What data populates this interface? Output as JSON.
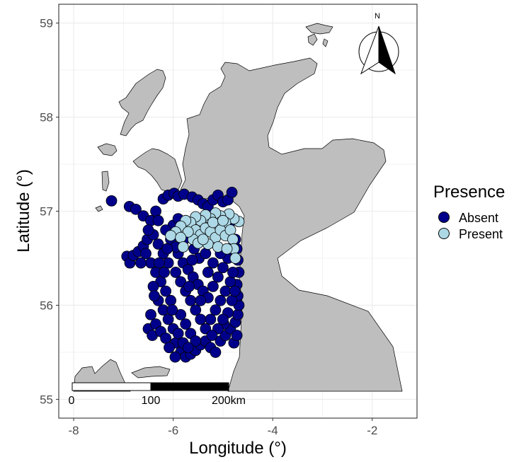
{
  "chart_data": {
    "type": "scatter",
    "xlabel": "Longitude (°)",
    "ylabel": "Latitude (°)",
    "xlim": [
      -8.3,
      -1.1
    ],
    "ylim": [
      54.8,
      59.2
    ],
    "x_ticks": [
      {
        "value": -8,
        "label": "-8"
      },
      {
        "value": -6,
        "label": "-6"
      },
      {
        "value": -4,
        "label": "-4"
      },
      {
        "value": -2,
        "label": "-2"
      }
    ],
    "y_ticks": [
      {
        "value": 55,
        "label": "55"
      },
      {
        "value": 56,
        "label": "56"
      },
      {
        "value": 57,
        "label": "57"
      },
      {
        "value": 58,
        "label": "58"
      },
      {
        "value": 59,
        "label": "59"
      }
    ],
    "grid": true,
    "legend": {
      "title": "Presence",
      "position": "right",
      "entries": [
        {
          "label": "Absent",
          "color": "#00008b"
        },
        {
          "label": "Present",
          "color": "#add8e6"
        }
      ]
    },
    "land_color": "#bebebe",
    "scale_bar": {
      "labels": [
        "0",
        "100",
        "200km"
      ]
    },
    "north_arrow": {
      "label": "N"
    },
    "series": [
      {
        "name": "Absent",
        "color": "#00008b",
        "points": [
          [
            -7.24,
            57.11
          ],
          [
            -6.93,
            56.52
          ],
          [
            -6.87,
            56.45
          ],
          [
            -6.8,
            56.53
          ],
          [
            -6.7,
            56.57
          ],
          [
            -6.6,
            56.63
          ],
          [
            -6.52,
            56.7
          ],
          [
            -6.88,
            57.05
          ],
          [
            -6.75,
            57.02
          ],
          [
            -6.6,
            56.95
          ],
          [
            -6.45,
            56.9
          ],
          [
            -6.35,
            57.0
          ],
          [
            -6.2,
            57.13
          ],
          [
            -6.1,
            57.17
          ],
          [
            -5.98,
            57.19
          ],
          [
            -5.9,
            57.16
          ],
          [
            -5.78,
            57.18
          ],
          [
            -5.62,
            57.15
          ],
          [
            -5.5,
            57.12
          ],
          [
            -5.4,
            57.08
          ],
          [
            -5.3,
            57.05
          ],
          [
            -5.2,
            57.12
          ],
          [
            -5.1,
            57.17
          ],
          [
            -5.0,
            57.1
          ],
          [
            -4.9,
            57.12
          ],
          [
            -4.82,
            57.2
          ],
          [
            -6.4,
            56.75
          ],
          [
            -6.3,
            56.65
          ],
          [
            -6.2,
            56.55
          ],
          [
            -6.1,
            56.45
          ],
          [
            -6.35,
            56.35
          ],
          [
            -6.25,
            56.25
          ],
          [
            -6.15,
            56.15
          ],
          [
            -6.05,
            56.05
          ],
          [
            -6.45,
            56.45
          ],
          [
            -6.4,
            56.2
          ],
          [
            -6.3,
            56.05
          ],
          [
            -6.2,
            55.95
          ],
          [
            -6.1,
            55.85
          ],
          [
            -6.0,
            55.75
          ],
          [
            -6.45,
            55.9
          ],
          [
            -6.5,
            55.75
          ],
          [
            -6.42,
            55.68
          ],
          [
            -6.35,
            55.8
          ],
          [
            -6.25,
            55.72
          ],
          [
            -6.15,
            55.65
          ],
          [
            -5.95,
            55.6
          ],
          [
            -5.85,
            55.5
          ],
          [
            -5.75,
            55.45
          ],
          [
            -5.65,
            55.48
          ],
          [
            -5.55,
            55.52
          ],
          [
            -5.45,
            55.58
          ],
          [
            -5.35,
            55.62
          ],
          [
            -5.25,
            55.55
          ],
          [
            -5.15,
            55.5
          ],
          [
            -5.05,
            55.62
          ],
          [
            -4.95,
            55.68
          ],
          [
            -4.85,
            55.75
          ],
          [
            -4.75,
            55.82
          ],
          [
            -4.7,
            55.9
          ],
          [
            -4.68,
            56.0
          ],
          [
            -4.7,
            56.1
          ],
          [
            -4.72,
            56.22
          ],
          [
            -4.68,
            56.35
          ],
          [
            -4.7,
            56.48
          ],
          [
            -4.72,
            56.6
          ],
          [
            -4.75,
            56.7
          ],
          [
            -5.95,
            56.35
          ],
          [
            -5.85,
            56.25
          ],
          [
            -5.75,
            56.15
          ],
          [
            -5.65,
            56.05
          ],
          [
            -5.55,
            55.95
          ],
          [
            -5.45,
            55.85
          ],
          [
            -5.35,
            55.75
          ],
          [
            -5.25,
            55.85
          ],
          [
            -5.15,
            55.95
          ],
          [
            -5.05,
            56.05
          ],
          [
            -4.95,
            56.15
          ],
          [
            -4.85,
            56.25
          ],
          [
            -4.8,
            56.35
          ],
          [
            -5.9,
            56.55
          ],
          [
            -5.8,
            56.45
          ],
          [
            -5.7,
            56.38
          ],
          [
            -5.6,
            56.3
          ],
          [
            -5.5,
            56.22
          ],
          [
            -5.4,
            56.15
          ],
          [
            -5.3,
            56.08
          ],
          [
            -5.2,
            56.2
          ],
          [
            -5.1,
            56.3
          ],
          [
            -5.0,
            56.4
          ],
          [
            -4.9,
            56.5
          ],
          [
            -6.0,
            56.85
          ],
          [
            -5.9,
            56.92
          ],
          [
            -6.05,
            56.7
          ],
          [
            -5.95,
            56.62
          ],
          [
            -6.15,
            56.8
          ],
          [
            -5.85,
            55.9
          ],
          [
            -5.75,
            55.8
          ],
          [
            -5.65,
            55.7
          ],
          [
            -5.55,
            55.62
          ],
          [
            -4.98,
            55.8
          ],
          [
            -4.9,
            55.92
          ],
          [
            -4.82,
            56.05
          ],
          [
            -5.8,
            55.6
          ],
          [
            -5.7,
            55.55
          ],
          [
            -6.3,
            56.9
          ],
          [
            -6.5,
            56.8
          ],
          [
            -6.55,
            56.55
          ],
          [
            -6.65,
            56.45
          ],
          [
            -5.3,
            56.35
          ],
          [
            -5.2,
            56.45
          ],
          [
            -5.48,
            56.5
          ],
          [
            -5.58,
            56.6
          ],
          [
            -4.78,
            55.6
          ],
          [
            -4.72,
            55.68
          ],
          [
            -5.9,
            55.7
          ],
          [
            -6.02,
            55.95
          ],
          [
            -5.1,
            55.75
          ],
          [
            -5.0,
            55.85
          ],
          [
            -4.76,
            56.15
          ],
          [
            -6.12,
            56.6
          ],
          [
            -5.62,
            56.48
          ],
          [
            -5.35,
            56.55
          ],
          [
            -4.85,
            56.6
          ],
          [
            -6.08,
            55.55
          ],
          [
            -5.22,
            55.68
          ],
          [
            -5.45,
            56.05
          ],
          [
            -6.28,
            56.45
          ],
          [
            -5.68,
            56.2
          ],
          [
            -5.05,
            56.55
          ],
          [
            -4.88,
            56.85
          ],
          [
            -5.78,
            56.7
          ],
          [
            -6.18,
            56.35
          ],
          [
            -6.38,
            56.1
          ],
          [
            -5.96,
            55.45
          ]
        ]
      },
      {
        "name": "Present",
        "color": "#add8e6",
        "points": [
          [
            -4.68,
            56.89
          ],
          [
            -4.78,
            56.92
          ],
          [
            -4.88,
            56.97
          ],
          [
            -4.95,
            56.88
          ],
          [
            -5.05,
            56.95
          ],
          [
            -5.15,
            56.98
          ],
          [
            -5.25,
            56.92
          ],
          [
            -5.35,
            56.96
          ],
          [
            -5.45,
            56.9
          ],
          [
            -5.55,
            56.94
          ],
          [
            -5.65,
            56.88
          ],
          [
            -5.75,
            56.9
          ],
          [
            -5.85,
            56.84
          ],
          [
            -5.95,
            56.78
          ],
          [
            -6.05,
            56.74
          ],
          [
            -5.55,
            56.8
          ],
          [
            -5.45,
            56.75
          ],
          [
            -5.35,
            56.82
          ],
          [
            -5.25,
            56.78
          ],
          [
            -5.15,
            56.72
          ],
          [
            -5.05,
            56.8
          ],
          [
            -4.95,
            56.74
          ],
          [
            -4.85,
            56.8
          ],
          [
            -4.8,
            56.7
          ],
          [
            -4.78,
            56.6
          ],
          [
            -4.75,
            56.5
          ],
          [
            -5.6,
            56.7
          ],
          [
            -5.7,
            56.78
          ],
          [
            -5.3,
            56.65
          ],
          [
            -5.1,
            56.62
          ],
          [
            -4.92,
            56.6
          ],
          [
            -5.85,
            56.72
          ],
          [
            -5.5,
            56.66
          ],
          [
            -5.2,
            56.88
          ],
          [
            -5.4,
            56.7
          ],
          [
            -5.8,
            56.62
          ],
          [
            -5.0,
            56.9
          ]
        ]
      }
    ]
  }
}
